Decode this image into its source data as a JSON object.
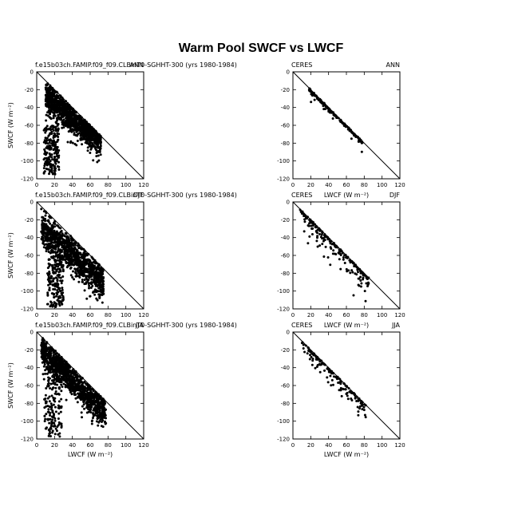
{
  "figure": {
    "title": "Warm Pool SWCF vs LWCF"
  },
  "chart_data": [
    {
      "type": "scatter",
      "left_label": "f.e15b03ch.FAMIP.f09_f09.CLBinT0-SGHHT-300 (yrs 1980-1984)",
      "right_label": "ANN",
      "xlabel": "",
      "ylabel": "SWCF (W m⁻²)",
      "xlim": [
        0,
        120
      ],
      "ylim": [
        -120,
        0
      ],
      "xticks": [
        0,
        20,
        40,
        60,
        80,
        100,
        120
      ],
      "yticks": [
        0,
        -20,
        -40,
        -60,
        -80,
        -100,
        -120
      ],
      "reference_line": "x = -y",
      "n_points": 1300,
      "clusters": [
        {
          "x": [
            10,
            72
          ],
          "y0": -28,
          "slope": -0.82,
          "spread": 9
        },
        {
          "x": [
            8,
            25
          ],
          "y_range": [
            -115,
            -60
          ]
        }
      ]
    },
    {
      "type": "scatter",
      "left_label": "CERES",
      "right_label": "ANN",
      "xlabel": "",
      "ylabel": "",
      "xlim": [
        0,
        120
      ],
      "ylim": [
        -120,
        0
      ],
      "xticks": [
        0,
        20,
        40,
        60,
        80,
        100,
        120
      ],
      "yticks": [
        0,
        -20,
        -40,
        -60,
        -80,
        -100,
        -120
      ],
      "reference_line": "x = -y",
      "n_points": 160,
      "clusters": [
        {
          "x": [
            18,
            78
          ],
          "y0": -14,
          "slope": -0.95,
          "spread": 6
        }
      ]
    },
    {
      "type": "scatter",
      "left_label": "f.e15b03ch.FAMIP.f09_f09.CLBinT0-SGHHT-300 (yrs 1980-1984)",
      "right_label": "DJF",
      "xlabel": "",
      "ylabel": "SWCF (W m⁻²)",
      "xlim": [
        0,
        120
      ],
      "ylim": [
        -120,
        0
      ],
      "xticks": [
        0,
        20,
        40,
        60,
        80,
        100,
        120
      ],
      "yticks": [
        0,
        -20,
        -40,
        -60,
        -80,
        -100,
        -120
      ],
      "reference_line": "x = -y",
      "n_points": 1300,
      "clusters": [
        {
          "x": [
            5,
            75
          ],
          "y0": -28,
          "slope": -0.9,
          "spread": 10
        },
        {
          "x": [
            12,
            30
          ],
          "y_range": [
            -118,
            -60
          ]
        }
      ]
    },
    {
      "type": "scatter",
      "left_label": "CERES",
      "center_label": "LWCF (W m⁻²)",
      "right_label": "DJF",
      "xlabel": "",
      "ylabel": "",
      "xlim": [
        0,
        120
      ],
      "ylim": [
        -120,
        0
      ],
      "xticks": [
        0,
        20,
        40,
        60,
        80,
        100,
        120
      ],
      "yticks": [
        0,
        -20,
        -40,
        -60,
        -80,
        -100,
        -120
      ],
      "reference_line": "x = -y",
      "n_points": 200,
      "clusters": [
        {
          "x": [
            8,
            85
          ],
          "y0": -10,
          "slope": -1.02,
          "spread": 10
        }
      ]
    },
    {
      "type": "scatter",
      "left_label": "f.e15b03ch.FAMIP.f09_f09.CLBinT0-SGHHT-300 (yrs 1980-1984)",
      "right_label": "JJA",
      "xlabel": "LWCF (W m⁻²)",
      "ylabel": "SWCF (W m⁻²)",
      "xlim": [
        0,
        120
      ],
      "ylim": [
        -120,
        0
      ],
      "xticks": [
        0,
        20,
        40,
        60,
        80,
        100,
        120
      ],
      "yticks": [
        0,
        -20,
        -40,
        -60,
        -80,
        -100,
        -120
      ],
      "reference_line": "x = -y",
      "n_points": 1300,
      "clusters": [
        {
          "x": [
            5,
            78
          ],
          "y0": -20,
          "slope": -1.0,
          "spread": 9
        },
        {
          "x": [
            8,
            28
          ],
          "y_range": [
            -118,
            -30
          ]
        }
      ]
    },
    {
      "type": "scatter",
      "left_label": "CERES",
      "center_label": "LWCF (W m⁻²)",
      "right_label": "JJA",
      "xlabel": "LWCF (W m⁻²)",
      "ylabel": "",
      "xlim": [
        0,
        120
      ],
      "ylim": [
        -120,
        0
      ],
      "xticks": [
        0,
        20,
        40,
        60,
        80,
        100,
        120
      ],
      "yticks": [
        0,
        -20,
        -40,
        -60,
        -80,
        -100,
        -120
      ],
      "reference_line": "x = -y",
      "n_points": 160,
      "clusters": [
        {
          "x": [
            10,
            82
          ],
          "y0": -12,
          "slope": -0.98,
          "spread": 7
        }
      ]
    }
  ]
}
